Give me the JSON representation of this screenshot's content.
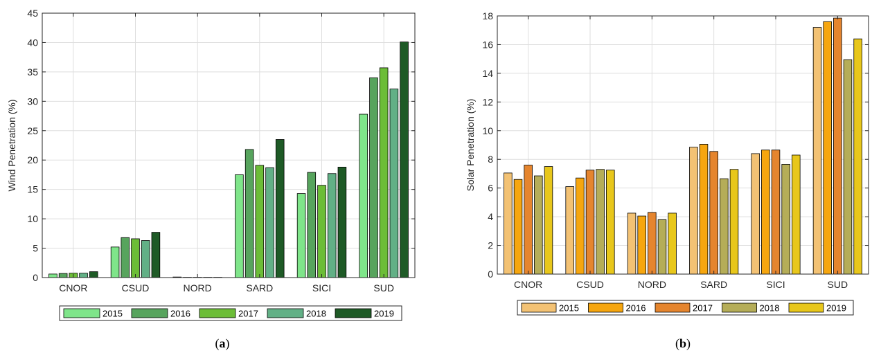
{
  "chart_data": [
    {
      "type": "bar",
      "categories": [
        "CNOR",
        "CSUD",
        "NORD",
        "SARD",
        "SICI",
        "SUD"
      ],
      "ylabel": "Wind Penetration (%)",
      "xlabel": "",
      "ylim": [
        0,
        45
      ],
      "yticks": [
        0,
        5,
        10,
        15,
        20,
        25,
        30,
        35,
        40,
        45
      ],
      "grid": true,
      "legend_position": "bottom-center",
      "series": [
        {
          "name": "2015",
          "color": "#7fe58a",
          "values": [
            0.6,
            5.2,
            0.1,
            17.5,
            14.3,
            27.8
          ]
        },
        {
          "name": "2016",
          "color": "#57a45d",
          "values": [
            0.7,
            6.8,
            0.05,
            21.8,
            17.9,
            34.0
          ]
        },
        {
          "name": "2017",
          "color": "#6cbd37",
          "values": [
            0.75,
            6.6,
            0.05,
            19.1,
            15.7,
            35.7
          ]
        },
        {
          "name": "2018",
          "color": "#62b086",
          "values": [
            0.75,
            6.3,
            0.05,
            18.7,
            17.7,
            32.1
          ]
        },
        {
          "name": "2019",
          "color": "#1e5a26",
          "values": [
            1.0,
            7.7,
            0.05,
            23.5,
            18.8,
            40.1
          ]
        }
      ]
    },
    {
      "type": "bar",
      "categories": [
        "CNOR",
        "CSUD",
        "NORD",
        "SARD",
        "SICI",
        "SUD"
      ],
      "ylabel": "Solar Penetration (%)",
      "xlabel": "",
      "ylim": [
        0,
        18
      ],
      "yticks": [
        0,
        2,
        4,
        6,
        8,
        10,
        12,
        14,
        16,
        18
      ],
      "grid": true,
      "legend_position": "bottom-center",
      "series": [
        {
          "name": "2015",
          "color": "#f3c274",
          "values": [
            7.05,
            6.1,
            4.25,
            8.85,
            8.4,
            17.2
          ]
        },
        {
          "name": "2016",
          "color": "#f6a60f",
          "values": [
            6.6,
            6.7,
            4.05,
            9.05,
            8.65,
            17.6
          ]
        },
        {
          "name": "2017",
          "color": "#e5852e",
          "values": [
            7.6,
            7.25,
            4.3,
            8.55,
            8.65,
            17.85
          ]
        },
        {
          "name": "2018",
          "color": "#b5ad58",
          "values": [
            6.85,
            7.3,
            3.8,
            6.65,
            7.65,
            14.95
          ]
        },
        {
          "name": "2019",
          "color": "#e8c71b",
          "values": [
            7.5,
            7.25,
            4.25,
            7.3,
            8.3,
            16.4
          ]
        }
      ]
    }
  ],
  "captions": [
    {
      "letter": "a"
    },
    {
      "letter": "b"
    }
  ]
}
